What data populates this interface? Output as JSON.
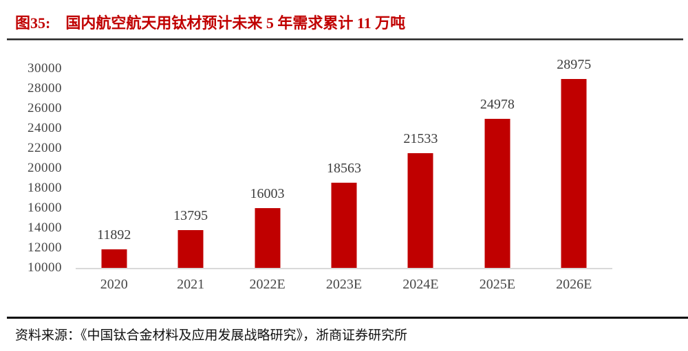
{
  "header": {
    "figure_label": "图35:",
    "title": "国内航空航天用钛材预计未来 5 年需求累计 11 万吨"
  },
  "chart_data": {
    "type": "bar",
    "categories": [
      "2020",
      "2021",
      "2022E",
      "2023E",
      "2024E",
      "2025E",
      "2026E"
    ],
    "values": [
      11892,
      13795,
      16003,
      18563,
      21533,
      24978,
      28975
    ],
    "data_labels": [
      "11892",
      "13795",
      "16003",
      "18563",
      "21533",
      "24978",
      "28975"
    ],
    "title": "",
    "xlabel": "",
    "ylabel": "",
    "ylim": [
      10000,
      30000
    ],
    "ytick_step": 2000,
    "ytick_labels": [
      "30000",
      "28000",
      "26000",
      "24000",
      "22000",
      "20000",
      "18000",
      "16000",
      "14000",
      "12000",
      "10000"
    ],
    "grid": false,
    "legend": "none",
    "bar_color": "#c00000",
    "baseline_color": "#d9d9d9"
  },
  "footer": {
    "source": "资料来源：《中国钛合金材料及应用发展战略研究》，浙商证券研究所"
  },
  "colors": {
    "accent_red": "#c00000",
    "axis_text": "#464646",
    "rule_top": "#262626",
    "rule_bottom": "#060606"
  }
}
